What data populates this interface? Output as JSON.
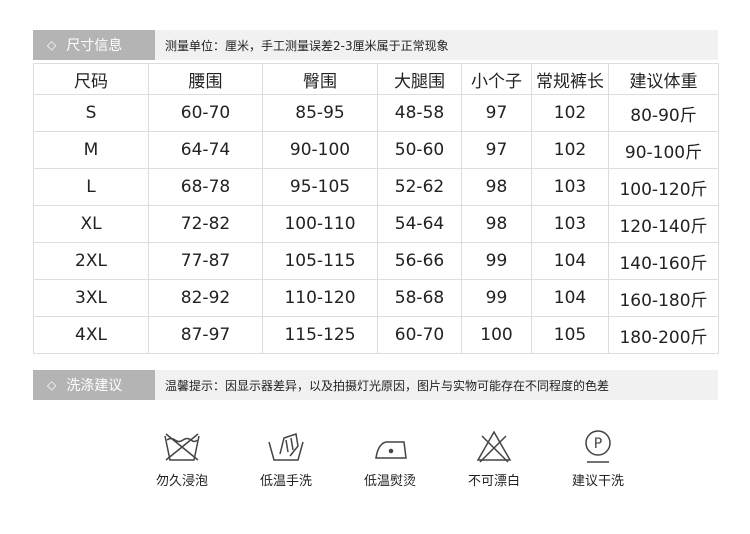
{
  "size_section": {
    "label": "尺寸信息",
    "note": "测量单位：厘米，手工测量误差2-3厘米属于正常现象"
  },
  "table": {
    "headers": [
      "尺码",
      "腰围",
      "臀围",
      "大腿围",
      "小个子",
      "常规裤长",
      "建议体重"
    ],
    "rows": [
      [
        "S",
        "60-70",
        "85-95",
        "48-58",
        "97",
        "102",
        "80-90斤"
      ],
      [
        "M",
        "64-74",
        "90-100",
        "50-60",
        "97",
        "102",
        "90-100斤"
      ],
      [
        "L",
        "68-78",
        "95-105",
        "52-62",
        "98",
        "103",
        "100-120斤"
      ],
      [
        "XL",
        "72-82",
        "100-110",
        "54-64",
        "98",
        "103",
        "120-140斤"
      ],
      [
        "2XL",
        "77-87",
        "105-115",
        "56-66",
        "99",
        "104",
        "140-160斤"
      ],
      [
        "3XL",
        "82-92",
        "110-120",
        "58-68",
        "99",
        "104",
        "160-180斤"
      ],
      [
        "4XL",
        "87-97",
        "115-125",
        "60-70",
        "100",
        "105",
        "180-200斤"
      ]
    ]
  },
  "care_section": {
    "label": "洗涤建议",
    "note": "温馨提示：因显示器差异，以及拍摄灯光原因，图片与实物可能存在不同程度的色差"
  },
  "care_icons": [
    {
      "icon": "no-soak-icon",
      "label": "勿久浸泡"
    },
    {
      "icon": "hand-wash-icon",
      "label": "低温手洗"
    },
    {
      "icon": "low-iron-icon",
      "label": "低温熨烫"
    },
    {
      "icon": "no-bleach-icon",
      "label": "不可漂白"
    },
    {
      "icon": "dry-clean-icon",
      "label": "建议干洗",
      "glyph": "P"
    }
  ]
}
